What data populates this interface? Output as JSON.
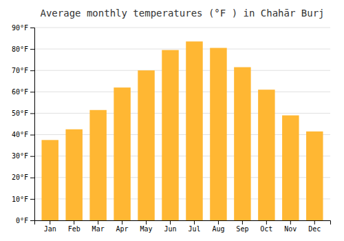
{
  "chart_data": {
    "type": "bar",
    "title": "Average monthly temperatures (°F ) in Chahār Burj",
    "categories": [
      "Jan",
      "Feb",
      "Mar",
      "Apr",
      "May",
      "Jun",
      "Jul",
      "Aug",
      "Sep",
      "Oct",
      "Nov",
      "Dec"
    ],
    "values": [
      37.5,
      42.5,
      51.5,
      62,
      70,
      79.5,
      83.5,
      80.5,
      71.5,
      61,
      49,
      41.5
    ],
    "color": "#FFB733",
    "ylim": [
      0,
      90
    ],
    "yticks": [
      {
        "value": 0,
        "label": "0°F"
      },
      {
        "value": 10,
        "label": "10°F"
      },
      {
        "value": 20,
        "label": "20°F"
      },
      {
        "value": 30,
        "label": "30°F"
      },
      {
        "value": 40,
        "label": "40°F"
      },
      {
        "value": 50,
        "label": "50°F"
      },
      {
        "value": 60,
        "label": "60°F"
      },
      {
        "value": 70,
        "label": "70°F"
      },
      {
        "value": 80,
        "label": "80°F"
      },
      {
        "value": 90,
        "label": "90°F"
      }
    ],
    "grid": true
  }
}
